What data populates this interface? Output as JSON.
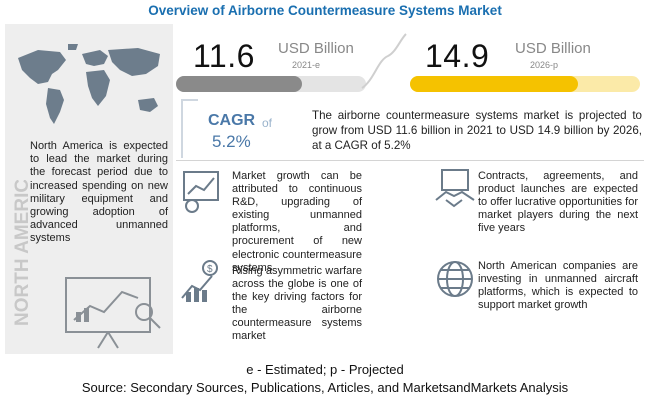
{
  "header": {
    "title": "Overview of Airborne Countermeasure Systems Market"
  },
  "left_panel": {
    "region_label": "NORTH AMERICA",
    "note": "North America is expected to lead the market during the forecast period due to increased spending on new military equipment and growing adoption of advanced unmanned systems"
  },
  "market": {
    "value_2021": "11.6",
    "unit_2021": "USD Billion",
    "year_2021": "2021-e",
    "value_2026": "14.9",
    "unit_2026": "USD Billion",
    "year_2026": "2026-p",
    "cagr_label": "CAGR",
    "cagr_of": "of",
    "cagr_value": "5.2%",
    "summary": "The airborne countermeasure systems market is projected to grow from USD 11.6 billion in 2021 to USD 14.9 billion by 2026, at a CAGR of 5.2%",
    "colors": {
      "bar_2021": "#8a8a8a",
      "bar_2026": "#f5c200",
      "accent": "#4a78a8"
    }
  },
  "drivers": [
    {
      "icon": "growth-chart-icon",
      "text": "Market growth can be attributed to continuous R&D, upgrading of existing unmanned platforms, and procurement of new electronic countermeasure systems"
    },
    {
      "icon": "dollar-chart-icon",
      "text": "Rising asymmetric warfare across the globe is one of the key driving factors for the airborne countermeasure systems market"
    },
    {
      "icon": "handshake-icon",
      "text": "Contracts, agreements, and product launches are expected to offer lucrative opportunities for market players during the next five years"
    },
    {
      "icon": "globe-icon",
      "text": "North American companies are investing in unmanned aircraft platforms, which is expected to support market growth"
    }
  ],
  "footer": {
    "legend": "e - Estimated; p - Projected",
    "source": "Source: Secondary Sources, Publications, Articles, and MarketsandMarkets Analysis"
  }
}
